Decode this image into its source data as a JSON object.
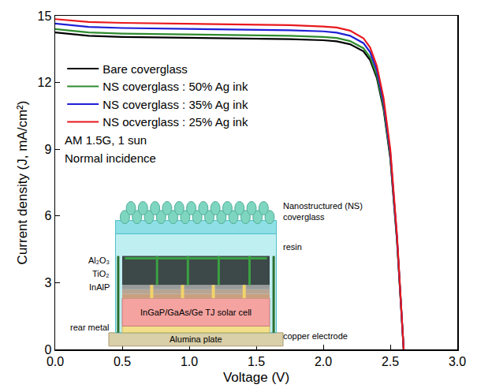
{
  "chart_data": {
    "type": "line",
    "xlabel": "Voltage (V)",
    "ylabel": "Current density (J, mA/cm²)",
    "xlim": [
      0,
      3
    ],
    "ylim": [
      0,
      15
    ],
    "xticks": [
      {
        "value": 0,
        "label": "0.0"
      },
      0.5,
      {
        "value": 1,
        "label": "1.0"
      },
      1.5,
      {
        "value": 2,
        "label": "2.0"
      },
      2.5,
      {
        "value": 3,
        "label": "3.0"
      }
    ],
    "yticks": [
      0,
      3,
      6,
      9,
      12,
      15
    ],
    "grid": false,
    "legend": "upper left",
    "x": [
      0,
      0.25,
      0.5,
      0.75,
      1.0,
      1.25,
      1.5,
      1.75,
      2.0,
      2.1,
      2.2,
      2.3,
      2.35,
      2.4,
      2.45,
      2.5,
      2.55,
      2.58,
      2.6
    ],
    "series": [
      {
        "name": "Bare coverglass",
        "color": "#000000",
        "line_style": "solid",
        "values": [
          14.25,
          14.1,
          14.05,
          14.03,
          14.02,
          14.0,
          13.98,
          13.95,
          13.9,
          13.85,
          13.72,
          13.4,
          13.0,
          12.2,
          10.8,
          8.6,
          4.9,
          2.0,
          0
        ]
      },
      {
        "name": "NS coverglass : 50% Ag ink",
        "color": "#2e8b2e",
        "line_style": "solid",
        "values": [
          14.4,
          14.25,
          14.2,
          14.18,
          14.17,
          14.15,
          14.13,
          14.1,
          14.05,
          14.0,
          13.86,
          13.54,
          13.13,
          12.32,
          10.9,
          8.7,
          4.95,
          2.0,
          0
        ]
      },
      {
        "name": "NS coverglass : 35% Ag ink",
        "color": "#1f1fd6",
        "line_style": "solid",
        "values": [
          14.65,
          14.5,
          14.45,
          14.43,
          14.42,
          14.4,
          14.38,
          14.35,
          14.3,
          14.24,
          14.1,
          13.77,
          13.36,
          12.54,
          11.1,
          8.85,
          5.05,
          2.05,
          0
        ]
      },
      {
        "name": "NS ocverglass : 25% Ag ink",
        "color": "#e8191e",
        "line_style": "solid",
        "values": [
          14.85,
          14.72,
          14.68,
          14.66,
          14.65,
          14.63,
          14.61,
          14.58,
          14.52,
          14.47,
          14.33,
          13.99,
          13.57,
          12.74,
          11.3,
          9.0,
          5.15,
          2.1,
          0
        ]
      }
    ],
    "annotations": [
      "AM 1.5G, 1 sun",
      "Normal incidence",
      "Nanostructured (NS) coverglass",
      "resin",
      "Al₂O₃",
      "TiO₂",
      "InAlP",
      "InGaP/GaAs/Ge TJ solar cell",
      "rear metal",
      "copper electrode",
      "Alumina plate"
    ]
  }
}
